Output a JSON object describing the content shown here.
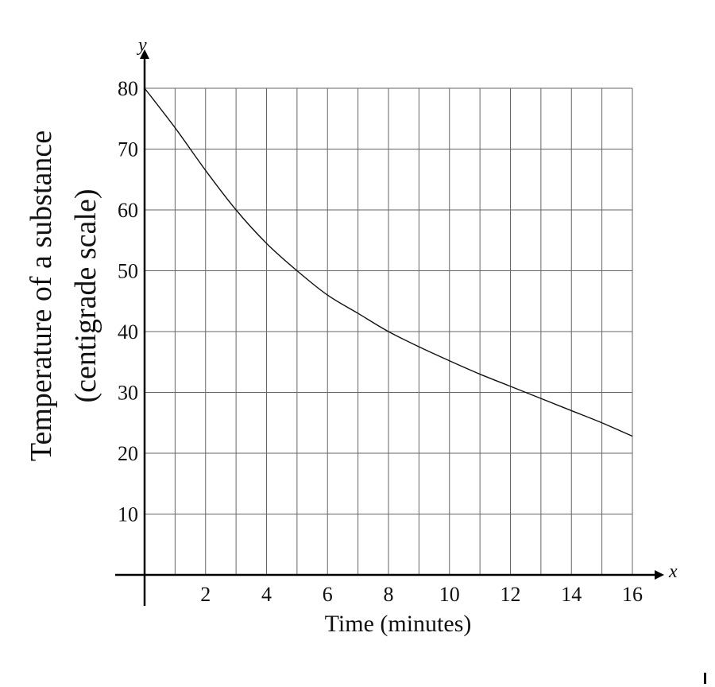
{
  "chart_data": {
    "type": "line",
    "title": "",
    "xlabel": "Time (minutes)",
    "ylabel_lines": [
      "Temperature of a substance",
      "(centigrade scale)"
    ],
    "x_axis_var": "x",
    "y_axis_var": "y",
    "xlim": [
      0,
      16
    ],
    "ylim": [
      0,
      80
    ],
    "x_tick_labels": [
      "2",
      "4",
      "6",
      "8",
      "10",
      "12",
      "14",
      "16"
    ],
    "y_tick_labels": [
      "10",
      "20",
      "30",
      "40",
      "50",
      "60",
      "70",
      "80"
    ],
    "x_grid_step": 1,
    "y_grid_step": 10,
    "grid": true,
    "series": [
      {
        "x": [
          0,
          1,
          2,
          3,
          4,
          5,
          6,
          7,
          8,
          9,
          10,
          11,
          12,
          13,
          14,
          15,
          16
        ],
        "y": [
          80,
          73.5,
          66.5,
          60,
          54.5,
          50,
          46,
          43,
          40,
          37.5,
          35.2,
          33,
          31,
          29,
          27,
          25,
          22.8
        ]
      }
    ]
  },
  "colors": {
    "line": "#111111",
    "grid": "#666666",
    "axis": "#000000"
  }
}
